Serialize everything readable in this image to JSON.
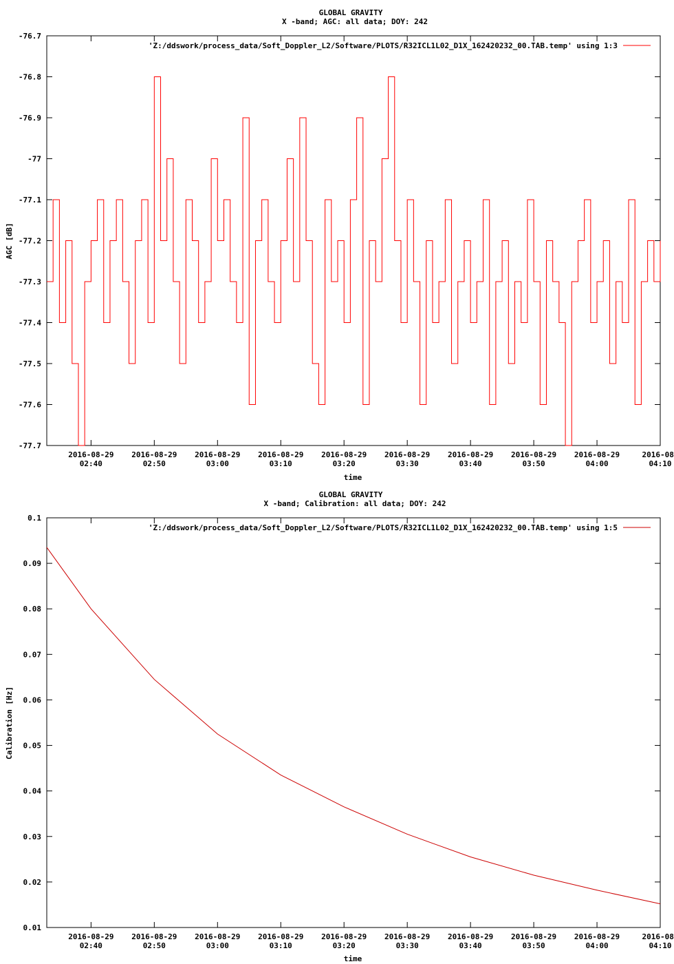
{
  "chart_data": [
    {
      "type": "line",
      "title": "GLOBAL GRAVITY",
      "subtitle": "X -band; AGC: all data; DOY: 242",
      "xlabel": "time",
      "ylabel": "AGC [dB]",
      "ylim": [
        -77.7,
        -76.7
      ],
      "y_ticks": [
        "-76.7",
        "-76.8",
        "-76.9",
        "-77",
        "-77.1",
        "-77.2",
        "-77.3",
        "-77.4",
        "-77.5",
        "-77.6",
        "-77.7"
      ],
      "xlim": [
        "2016-08-29 02:33",
        "2016-08-29 04:10"
      ],
      "x_ticks": [
        {
          "date": "2016-08-29",
          "time": "02:40"
        },
        {
          "date": "2016-08-29",
          "time": "02:50"
        },
        {
          "date": "2016-08-29",
          "time": "03:00"
        },
        {
          "date": "2016-08-29",
          "time": "03:10"
        },
        {
          "date": "2016-08-29",
          "time": "03:20"
        },
        {
          "date": "2016-08-29",
          "time": "03:30"
        },
        {
          "date": "2016-08-29",
          "time": "03:40"
        },
        {
          "date": "2016-08-29",
          "time": "03:50"
        },
        {
          "date": "2016-08-29",
          "time": "04:00"
        },
        {
          "date": "2016-08-",
          "time": "04:10"
        }
      ],
      "legend": "top-right",
      "series": [
        {
          "name": "'Z:/ddswork/process_data/Soft_Doppler_L2/Software/PLOTS/R32ICL1L02_D1X_162420232_00.TAB.temp' using 1:3",
          "color": "#ff0000",
          "x": [
            "02:33",
            "02:34",
            "02:35",
            "02:36",
            "02:37",
            "02:38",
            "02:39",
            "02:40",
            "02:41",
            "02:42",
            "02:43",
            "02:44",
            "02:45",
            "02:46",
            "02:47",
            "02:48",
            "02:49",
            "02:50",
            "02:51",
            "02:52",
            "02:53",
            "02:54",
            "02:55",
            "02:56",
            "02:57",
            "02:58",
            "02:59",
            "03:00",
            "03:01",
            "03:02",
            "03:03",
            "03:04",
            "03:05",
            "03:06",
            "03:07",
            "03:08",
            "03:09",
            "03:10",
            "03:11",
            "03:12",
            "03:13",
            "03:14",
            "03:15",
            "03:16",
            "03:17",
            "03:18",
            "03:19",
            "03:20",
            "03:21",
            "03:22",
            "03:23",
            "03:24",
            "03:25",
            "03:26",
            "03:27",
            "03:28",
            "03:29",
            "03:30",
            "03:31",
            "03:32",
            "03:33",
            "03:34",
            "03:35",
            "03:36",
            "03:37",
            "03:38",
            "03:39",
            "03:40",
            "03:41",
            "03:42",
            "03:43",
            "03:44",
            "03:45",
            "03:46",
            "03:47",
            "03:48",
            "03:49",
            "03:50",
            "03:51",
            "03:52",
            "03:53",
            "03:54",
            "03:55",
            "03:56",
            "03:57",
            "03:58",
            "03:59",
            "04:00",
            "04:01",
            "04:02",
            "04:03",
            "04:04",
            "04:05",
            "04:06",
            "04:07",
            "04:08",
            "04:09",
            "04:10"
          ],
          "values": [
            -77.3,
            -77.1,
            -77.4,
            -77.2,
            -77.5,
            -77.7,
            -77.3,
            -77.2,
            -77.1,
            -77.4,
            -77.2,
            -77.1,
            -77.3,
            -77.5,
            -77.2,
            -77.1,
            -77.4,
            -76.8,
            -77.2,
            -77.0,
            -77.3,
            -77.5,
            -77.1,
            -77.2,
            -77.4,
            -77.3,
            -77.0,
            -77.2,
            -77.1,
            -77.3,
            -77.4,
            -76.9,
            -77.6,
            -77.2,
            -77.1,
            -77.3,
            -77.4,
            -77.2,
            -77.0,
            -77.3,
            -76.9,
            -77.2,
            -77.5,
            -77.6,
            -77.1,
            -77.3,
            -77.2,
            -77.4,
            -77.1,
            -76.9,
            -77.6,
            -77.2,
            -77.3,
            -77.0,
            -76.8,
            -77.2,
            -77.4,
            -77.1,
            -77.3,
            -77.6,
            -77.2,
            -77.4,
            -77.3,
            -77.1,
            -77.5,
            -77.3,
            -77.2,
            -77.4,
            -77.3,
            -77.1,
            -77.6,
            -77.3,
            -77.2,
            -77.5,
            -77.3,
            -77.4,
            -77.1,
            -77.3,
            -77.6,
            -77.2,
            -77.3,
            -77.4,
            -77.7,
            -77.3,
            -77.2,
            -77.1,
            -77.4,
            -77.3,
            -77.2,
            -77.5,
            -77.3,
            -77.4,
            -77.1,
            -77.6,
            -77.3,
            -77.2,
            -77.3,
            -77.2
          ]
        }
      ]
    },
    {
      "type": "line",
      "title": "GLOBAL GRAVITY",
      "subtitle": "X -band; Calibration: all data; DOY: 242",
      "xlabel": "time",
      "ylabel": "Calibration [Hz]",
      "ylim": [
        0.01,
        0.1
      ],
      "y_ticks": [
        "0.1",
        "0.09",
        "0.08",
        "0.07",
        "0.06",
        "0.05",
        "0.04",
        "0.03",
        "0.02",
        "0.01"
      ],
      "xlim": [
        "2016-08-29 02:33",
        "2016-08-29 04:10"
      ],
      "x_ticks": [
        {
          "date": "2016-08-29",
          "time": "02:40"
        },
        {
          "date": "2016-08-29",
          "time": "02:50"
        },
        {
          "date": "2016-08-29",
          "time": "03:00"
        },
        {
          "date": "2016-08-29",
          "time": "03:10"
        },
        {
          "date": "2016-08-29",
          "time": "03:20"
        },
        {
          "date": "2016-08-29",
          "time": "03:30"
        },
        {
          "date": "2016-08-29",
          "time": "03:40"
        },
        {
          "date": "2016-08-29",
          "time": "03:50"
        },
        {
          "date": "2016-08-29",
          "time": "04:00"
        },
        {
          "date": "2016-08-",
          "time": "04:10"
        }
      ],
      "legend": "top-right",
      "series": [
        {
          "name": "'Z:/ddswork/process_data/Soft_Doppler_L2/Software/PLOTS/R32ICL1L02_D1X_162420232_00.TAB.temp' using 1:5",
          "color": "#cc0000",
          "x": [
            "02:33",
            "02:40",
            "02:50",
            "03:00",
            "03:10",
            "03:20",
            "03:30",
            "03:40",
            "03:50",
            "04:00",
            "04:10"
          ],
          "values": [
            0.0935,
            0.08,
            0.0645,
            0.0525,
            0.0435,
            0.0365,
            0.0305,
            0.0255,
            0.0215,
            0.0182,
            0.0152
          ]
        }
      ]
    }
  ]
}
